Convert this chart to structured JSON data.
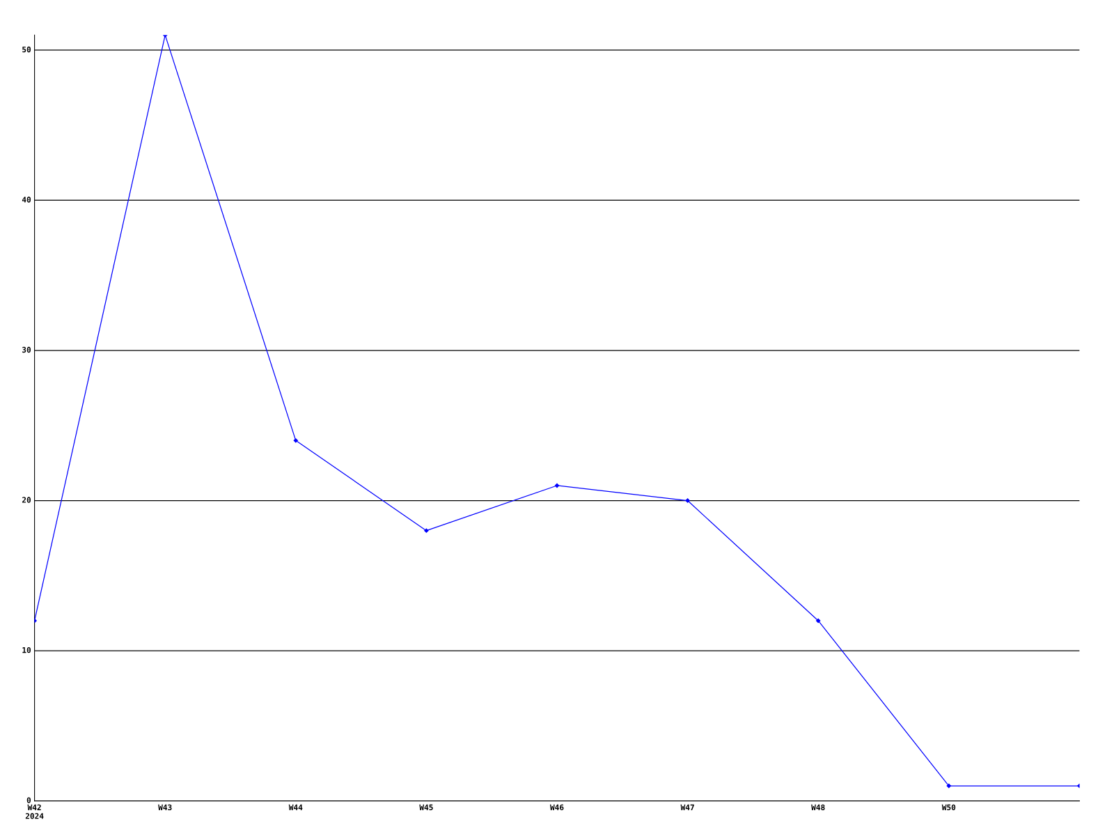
{
  "chart_data": {
    "type": "line",
    "categories": [
      "W42\n2024",
      "W43",
      "W44",
      "W45",
      "W46",
      "W47",
      "W48",
      "W50",
      null
    ],
    "series": [
      {
        "color": "#0000ff",
        "values": [
          12,
          51,
          24,
          18,
          21,
          20,
          12,
          1,
          1
        ]
      }
    ],
    "ylim": [
      0,
      51
    ],
    "yticks": [
      0,
      10,
      20,
      30,
      40,
      50
    ],
    "grid": "y",
    "marker": "diamond",
    "line_style": "solid"
  }
}
